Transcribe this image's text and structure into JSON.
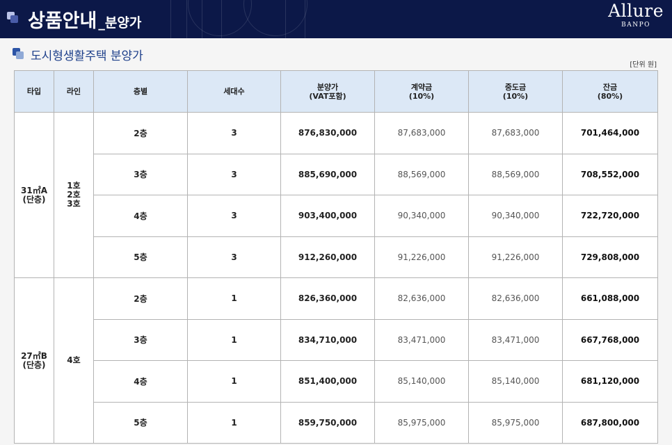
{
  "header": {
    "title": "상품안내",
    "subtitle": "_분양가",
    "logo": {
      "main": "Allure",
      "sub": "BANPO"
    }
  },
  "section": {
    "title": "도시형생활주택 분양가",
    "unit": "[단위 원]"
  },
  "table": {
    "headers": {
      "type": "타입",
      "line": "라인",
      "floor": "층별",
      "units": "세대수",
      "price": "분양가",
      "price_note": "(VAT포함)",
      "contract": "계약금",
      "contract_note": "(10%)",
      "middle": "중도금",
      "middle_note": "(10%)",
      "balance": "잔금",
      "balance_note": "(80%)"
    },
    "groups": [
      {
        "type": "31㎡A",
        "type_note": "(단층)",
        "lines": [
          "1호",
          "2호",
          "3호"
        ],
        "rows": [
          {
            "floor": "2층",
            "units": "3",
            "price": "876,830,000",
            "contract": "87,683,000",
            "middle": "87,683,000",
            "balance": "701,464,000"
          },
          {
            "floor": "3층",
            "units": "3",
            "price": "885,690,000",
            "contract": "88,569,000",
            "middle": "88,569,000",
            "balance": "708,552,000"
          },
          {
            "floor": "4층",
            "units": "3",
            "price": "903,400,000",
            "contract": "90,340,000",
            "middle": "90,340,000",
            "balance": "722,720,000"
          },
          {
            "floor": "5층",
            "units": "3",
            "price": "912,260,000",
            "contract": "91,226,000",
            "middle": "91,226,000",
            "balance": "729,808,000"
          }
        ]
      },
      {
        "type": "27㎡B",
        "type_note": "(단층)",
        "lines": [
          "4호"
        ],
        "rows": [
          {
            "floor": "2층",
            "units": "1",
            "price": "826,360,000",
            "contract": "82,636,000",
            "middle": "82,636,000",
            "balance": "661,088,000"
          },
          {
            "floor": "3층",
            "units": "1",
            "price": "834,710,000",
            "contract": "83,471,000",
            "middle": "83,471,000",
            "balance": "667,768,000"
          },
          {
            "floor": "4층",
            "units": "1",
            "price": "851,400,000",
            "contract": "85,140,000",
            "middle": "85,140,000",
            "balance": "681,120,000"
          },
          {
            "floor": "5층",
            "units": "1",
            "price": "859,750,000",
            "contract": "85,975,000",
            "middle": "85,975,000",
            "balance": "687,800,000"
          }
        ]
      }
    ]
  },
  "colors": {
    "header_bg": "#0c1848",
    "table_header_bg": "#dce8f6",
    "section_title": "#1d3f8a"
  }
}
